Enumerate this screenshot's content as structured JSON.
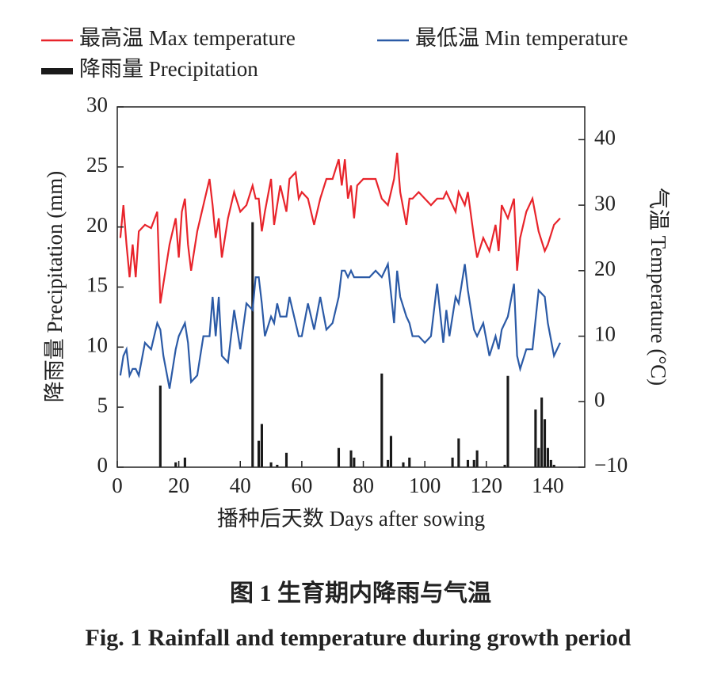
{
  "chart_data": {
    "type": "combo",
    "xlabel": "播种后天数 Days after sowing",
    "ylabel": "降雨量 Precipitation (mm)",
    "y2label": "气温 Temperature (°C)",
    "caption_cn": "图 1   生育期内降雨与气温",
    "caption_en": "Fig. 1   Rainfall and temperature during growth period",
    "xlim": [
      0,
      152
    ],
    "xticks": [
      0,
      20,
      40,
      60,
      80,
      100,
      120,
      140
    ],
    "ylim": [
      0,
      30
    ],
    "yticks": [
      0,
      5,
      10,
      15,
      20,
      25,
      30
    ],
    "y2lim": [
      -10,
      45
    ],
    "y2ticks": [
      {
        "value": -10,
        "label": "−10"
      },
      0,
      10,
      20,
      30,
      40
    ],
    "series": [
      {
        "name": "最高温 Max temperature",
        "color": "#e8242b",
        "type": "line",
        "axis": "y2",
        "x": [
          1,
          2,
          3,
          4,
          5,
          6,
          7,
          9,
          11,
          13,
          14,
          15,
          17,
          19,
          20,
          21,
          22,
          23,
          24,
          26,
          28,
          30,
          31,
          32,
          33,
          34,
          36,
          38,
          40,
          42,
          44,
          45,
          46,
          47,
          48,
          50,
          51,
          52,
          53,
          55,
          56,
          58,
          59,
          60,
          62,
          64,
          66,
          68,
          70,
          72,
          73,
          74,
          75,
          76,
          77,
          78,
          80,
          82,
          84,
          86,
          88,
          90,
          91,
          92,
          94,
          95,
          96,
          98,
          100,
          102,
          104,
          106,
          107,
          108,
          110,
          111,
          113,
          114,
          116,
          117,
          119,
          121,
          123,
          124,
          125,
          127,
          129,
          130,
          131,
          133,
          135,
          137,
          139,
          140,
          142,
          144
        ],
        "values": [
          25,
          30,
          24,
          19,
          24,
          19,
          26,
          27,
          26.5,
          29,
          15,
          18,
          24,
          28,
          22,
          29,
          31,
          24,
          20,
          26,
          30,
          34,
          30,
          25,
          28,
          22,
          28,
          32,
          29,
          30,
          33,
          31,
          31,
          26,
          29,
          34,
          27,
          30,
          33,
          29,
          34,
          35,
          31,
          32,
          31,
          27,
          31,
          34,
          34,
          37,
          33,
          37,
          31,
          33,
          28,
          33,
          34,
          34,
          34,
          31,
          30,
          34,
          38,
          32,
          27,
          31,
          31,
          32,
          31,
          30,
          31,
          31,
          32,
          31,
          29,
          32,
          30,
          32,
          25,
          22,
          25,
          23,
          27,
          23,
          30,
          28,
          31,
          20,
          25,
          29,
          31,
          26,
          23,
          24,
          27,
          28
        ]
      },
      {
        "name": "最低温 Min  temperature",
        "color": "#2b5aa6",
        "type": "line",
        "axis": "y2",
        "x": [
          1,
          2,
          3,
          4,
          5,
          6,
          7,
          9,
          11,
          13,
          14,
          15,
          17,
          19,
          20,
          21,
          22,
          23,
          24,
          26,
          28,
          30,
          31,
          32,
          33,
          34,
          36,
          38,
          40,
          42,
          44,
          45,
          46,
          47,
          48,
          50,
          51,
          52,
          53,
          55,
          56,
          58,
          59,
          60,
          62,
          64,
          66,
          68,
          70,
          72,
          73,
          74,
          75,
          76,
          77,
          78,
          80,
          82,
          84,
          86,
          88,
          90,
          91,
          92,
          94,
          95,
          96,
          98,
          100,
          102,
          104,
          106,
          107,
          108,
          110,
          111,
          113,
          114,
          116,
          117,
          119,
          121,
          123,
          124,
          125,
          127,
          129,
          130,
          131,
          133,
          135,
          137,
          139,
          140,
          142,
          144
        ],
        "values": [
          4,
          7,
          8,
          4,
          5,
          5,
          4,
          9,
          8,
          12,
          11,
          7,
          2,
          8,
          10,
          11,
          12,
          9,
          3,
          4,
          10,
          10,
          16,
          10,
          16,
          7,
          6,
          14,
          8,
          15,
          14,
          19,
          19,
          15,
          10,
          13,
          12,
          15,
          13,
          13,
          16,
          12,
          10,
          10,
          15,
          11,
          16,
          11,
          12,
          16,
          20,
          20,
          19,
          20,
          19,
          19,
          19,
          19,
          20,
          19,
          21,
          12,
          20,
          16,
          13,
          12,
          10,
          10,
          9,
          10,
          18,
          9,
          14,
          10,
          16,
          15,
          21,
          17,
          11,
          10,
          12,
          7,
          10,
          8,
          11,
          13,
          18,
          7,
          5,
          8,
          8,
          17,
          16,
          12,
          7,
          9
        ]
      },
      {
        "name": "降雨量 Precipitation",
        "color": "#1a1a1a",
        "type": "bar",
        "x": [
          14,
          19,
          22,
          44,
          46,
          47,
          50,
          52,
          55,
          72,
          76,
          77,
          86,
          88,
          89,
          93,
          95,
          109,
          111,
          114,
          116,
          117,
          126,
          127,
          136,
          137,
          138,
          139,
          140,
          141,
          142
        ],
        "values": [
          6.8,
          0.4,
          0.8,
          20.4,
          2.2,
          3.6,
          0.4,
          0.2,
          1.2,
          1.6,
          1.4,
          0.8,
          7.8,
          0.6,
          2.6,
          0.4,
          0.8,
          0.8,
          2.4,
          0.6,
          0.6,
          1.4,
          0.2,
          7.6,
          4.8,
          1.6,
          5.8,
          4,
          1.6,
          0.6,
          0.2
        ]
      }
    ]
  }
}
